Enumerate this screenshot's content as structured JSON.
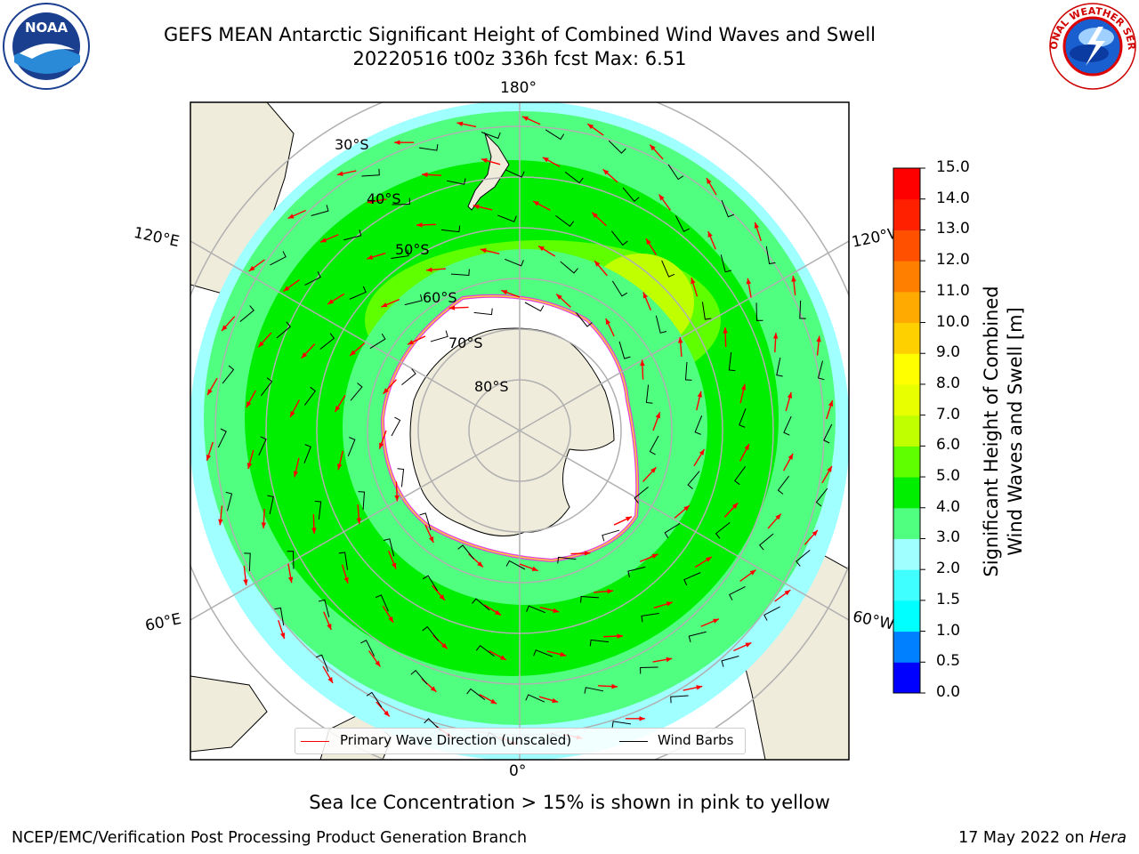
{
  "header": {
    "title_line1": "GEFS MEAN Antarctic Significant Height of Combined Wind Waves and Swell",
    "title_line2": "20220516 t00z 336h fcst   Max: 6.51"
  },
  "logos": {
    "noaa_text": "NOAA",
    "nws_text": "NATIONAL WEATHER SERVICE"
  },
  "map": {
    "longitude_labels": [
      "180°",
      "120°E",
      "120°W",
      "60°E",
      "60°W",
      "0°"
    ],
    "latitude_labels": [
      "30°S",
      "40°S",
      "50°S",
      "60°S",
      "70°S",
      "80°S"
    ]
  },
  "legend": {
    "wave_direction_label": "Primary Wave Direction (unscaled)",
    "wind_barbs_label": "Wind Barbs",
    "wave_color": "#ff0000",
    "barb_color": "#000000"
  },
  "colorbar": {
    "title_line1": "Significant Height of Combined",
    "title_line2": "Wind Waves and Swell [m]",
    "ticks": [
      "0.0",
      "0.5",
      "1.0",
      "1.5",
      "2.0",
      "3.0",
      "4.0",
      "5.0",
      "6.0",
      "7.0",
      "8.0",
      "9.0",
      "10.0",
      "11.0",
      "12.0",
      "13.0",
      "14.0",
      "15.0"
    ],
    "colors": [
      "#0000ff",
      "#0080ff",
      "#00ffff",
      "#40ffff",
      "#a0ffff",
      "#50ff80",
      "#00ee00",
      "#60ff00",
      "#c0ff00",
      "#e8ff00",
      "#ffff00",
      "#ffd000",
      "#ffaa00",
      "#ff8000",
      "#ff5000",
      "#ff2000",
      "#ff0000"
    ]
  },
  "footer": {
    "note": "Sea Ice Concentration > 15% is shown in pink to yellow",
    "left": "NCEP/EMC/Verification Post Processing Product Generation Branch",
    "right_date": "17 May 2022 on",
    "right_host": "Hera"
  }
}
